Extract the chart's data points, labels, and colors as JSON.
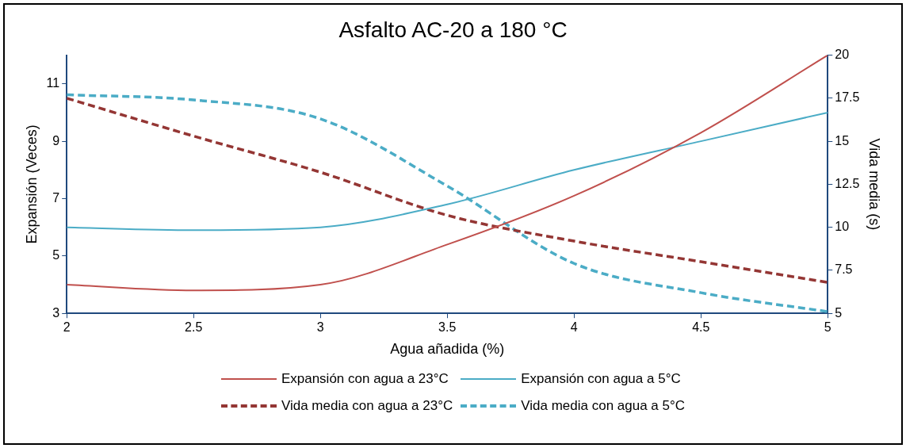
{
  "chart_data": {
    "type": "line",
    "title": "Asfalto AC-20 a 180 °C",
    "xlabel": "Agua añadida (%)",
    "ylabel": "Expansión (Veces)",
    "y2label": "Vida media (s)",
    "x": [
      2,
      2.5,
      3,
      3.5,
      4,
      4.5,
      5
    ],
    "xlim": [
      2,
      5
    ],
    "xticks": [
      2,
      2.5,
      3,
      3.5,
      4,
      4.5,
      5
    ],
    "ylim": [
      3,
      12
    ],
    "yticks": [
      3,
      5,
      7,
      9,
      11
    ],
    "y2lim": [
      5,
      20
    ],
    "y2ticks": [
      5,
      7.5,
      10,
      12.5,
      15,
      17.5,
      20
    ],
    "grid": false,
    "legend": "bottom",
    "marker": "none",
    "series": [
      {
        "name": "Expansión con agua a 23°C",
        "color": "#c0504d",
        "line_style": "solid",
        "values": [
          4.0,
          3.8,
          4.0,
          5.4,
          7.1,
          9.3,
          12.0
        ]
      },
      {
        "name": "Expansión con agua a 5°C",
        "color": "#4bacc6",
        "line_style": "solid",
        "values": [
          6.0,
          5.9,
          6.0,
          6.8,
          8.0,
          9.0,
          10.0
        ]
      },
      {
        "name": "Vida media con agua a 23°C",
        "color": "#943634",
        "line_style": "dashed",
        "axis": "y2",
        "values": [
          17.5,
          15.3,
          13.2,
          10.7,
          9.2,
          8.0,
          6.8
        ]
      },
      {
        "name": "Vida media con agua a 5°C",
        "color": "#4bacc6",
        "line_style": "dashed",
        "axis": "y2",
        "values": [
          17.7,
          17.4,
          16.3,
          12.4,
          7.9,
          6.2,
          5.1
        ]
      }
    ]
  }
}
